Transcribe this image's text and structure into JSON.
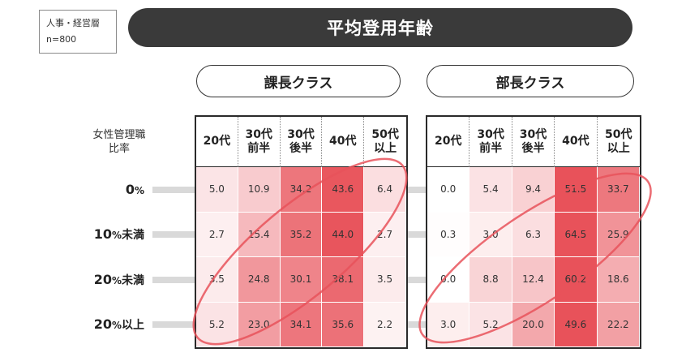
{
  "sample": {
    "line1": "人事・経営層",
    "line2": "n=800"
  },
  "title": "平均登用年齢",
  "row_header": {
    "line1": "女性管理職",
    "line2": "比率"
  },
  "rows": [
    {
      "main": "0",
      "pct": "%",
      "suffix": ""
    },
    {
      "main": "10",
      "pct": "%",
      "suffix": "未満"
    },
    {
      "main": "20",
      "pct": "%",
      "suffix": "未満"
    },
    {
      "main": "20",
      "pct": "%",
      "suffix": "以上"
    }
  ],
  "colors": {
    "title_bg": "#3a3a3a",
    "heat_max": "#e8525a",
    "heat_min": "#ffffff",
    "bar": "#d9d9d9"
  },
  "chart_data": [
    {
      "type": "heatmap",
      "title": "課長クラス",
      "columns": [
        "20代",
        "30代\n前半",
        "30代\n後半",
        "40代",
        "50代\n以上"
      ],
      "rows": [
        "0%",
        "10%未満",
        "20%未満",
        "20%以上"
      ],
      "values": [
        [
          5.0,
          10.9,
          34.2,
          43.6,
          6.4
        ],
        [
          2.7,
          15.4,
          35.2,
          44.0,
          2.7
        ],
        [
          3.5,
          24.8,
          30.1,
          38.1,
          3.5
        ],
        [
          5.2,
          23.0,
          34.1,
          35.6,
          2.2
        ]
      ],
      "labels": [
        [
          "5.0",
          "10.9",
          "34.2",
          "43.6",
          "6.4"
        ],
        [
          "2.7",
          "15.4",
          "35.2",
          "44.0",
          "2.7"
        ],
        [
          "3.5",
          "24.8",
          "30.1",
          "38.1",
          "3.5"
        ],
        [
          "5.2",
          "23.0",
          "34.1",
          "35.6",
          "2.2"
        ]
      ],
      "highlight": "diagonal band from 20%以上/20代 up to 0%/50代以上"
    },
    {
      "type": "heatmap",
      "title": "部長クラス",
      "columns": [
        "20代",
        "30代\n前半",
        "30代\n後半",
        "40代",
        "50代\n以上"
      ],
      "rows": [
        "0%",
        "10%未満",
        "20%未満",
        "20%以上"
      ],
      "values": [
        [
          0.0,
          5.4,
          9.4,
          51.5,
          33.7
        ],
        [
          0.3,
          3.0,
          6.3,
          64.5,
          25.9
        ],
        [
          0.0,
          8.8,
          12.4,
          60.2,
          18.6
        ],
        [
          3.0,
          5.2,
          20.0,
          49.6,
          22.2
        ]
      ],
      "labels": [
        [
          "0.0",
          "5.4",
          "9.4",
          "51.5",
          "33.7"
        ],
        [
          "0.3",
          "3.0",
          "6.3",
          "64.5",
          "25.9"
        ],
        [
          "0.0",
          "8.8",
          "12.4",
          "60.2",
          "18.6"
        ],
        [
          "3.0",
          "5.2",
          "20.0",
          "49.6",
          "22.2"
        ]
      ],
      "highlight": "diagonal band from 20%以上/20代 up to 0%/50代以上"
    }
  ]
}
